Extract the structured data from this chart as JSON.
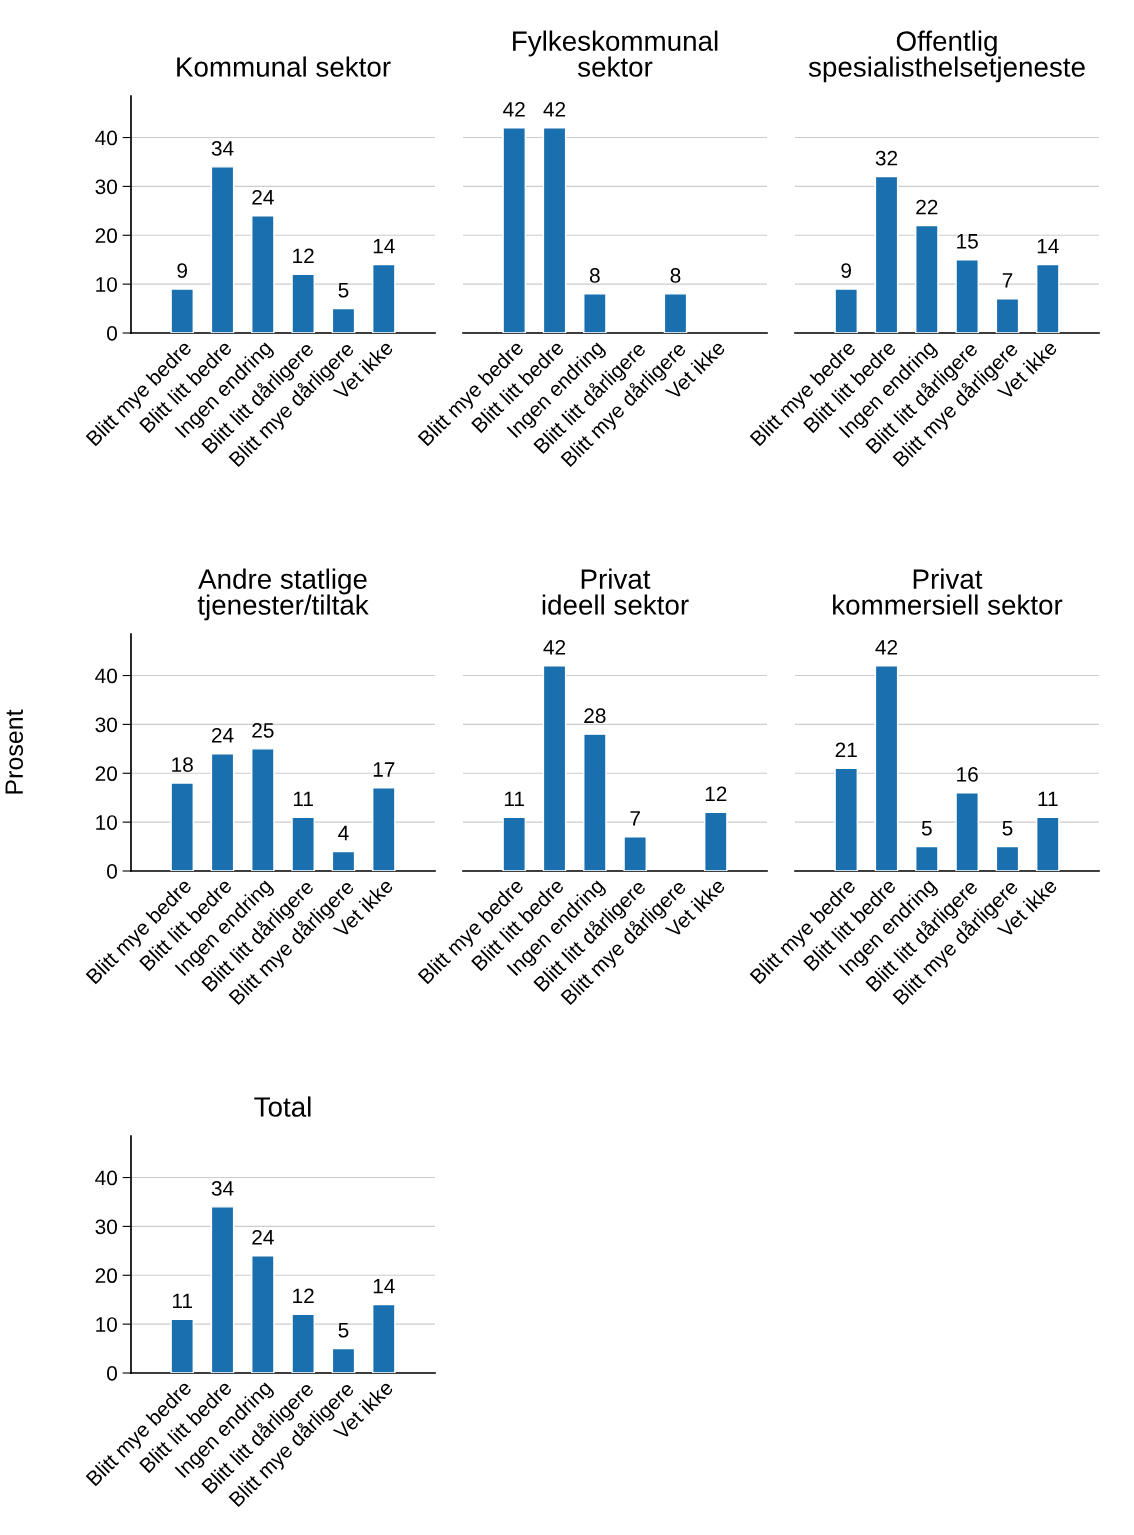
{
  "chart_data": [
    {
      "type": "bar",
      "title": "Kommunal sektor",
      "categories": [
        "Blitt mye bedre",
        "Blitt litt bedre",
        "Ingen endring",
        "Blitt litt dårligere",
        "Blitt mye dårligere",
        "Vet ikke"
      ],
      "values": [
        9,
        34,
        24,
        12,
        5,
        14
      ],
      "color": "#1a6faf",
      "ylim": [
        0,
        48.5
      ],
      "yticks": [
        0,
        10,
        20,
        30,
        40
      ],
      "grid": "y",
      "data_labels": true
    },
    {
      "type": "bar",
      "title": "Fylkeskommunal\nsektor",
      "categories": [
        "Blitt mye bedre",
        "Blitt litt bedre",
        "Ingen endring",
        "Blitt litt dårligere",
        "Blitt mye dårligere",
        "Vet ikke"
      ],
      "values": [
        42,
        42,
        8,
        null,
        8,
        null
      ],
      "color": "#1a6faf",
      "grid": "y",
      "data_labels": true,
      "tick_labels": "x"
    },
    {
      "type": "bar",
      "title": "Offentlig\nspesialisthelsetjeneste",
      "categories": [
        "Blitt mye bedre",
        "Blitt litt bedre",
        "Ingen endring",
        "Blitt litt dårligere",
        "Blitt mye dårligere",
        "Vet ikke"
      ],
      "values": [
        9,
        32,
        22,
        15,
        7,
        14
      ],
      "color": "#1a6faf",
      "grid": "y",
      "data_labels": true,
      "tick_labels": "x"
    },
    {
      "type": "bar",
      "title": "Andre statlige\ntjenester/tiltak",
      "ylabel": "Prosent",
      "categories": [
        "Blitt mye bedre",
        "Blitt litt bedre",
        "Ingen endring",
        "Blitt litt dårligere",
        "Blitt mye dårligere",
        "Vet ikke"
      ],
      "values": [
        18,
        24,
        25,
        11,
        4,
        17
      ],
      "color": "#1a6faf",
      "ylim": [
        0,
        48.5
      ],
      "yticks": [
        0,
        10,
        20,
        30,
        40
      ],
      "grid": "y",
      "data_labels": true
    },
    {
      "type": "bar",
      "title": "Privat\nideell sektor",
      "categories": [
        "Blitt mye bedre",
        "Blitt litt bedre",
        "Ingen endring",
        "Blitt litt dårligere",
        "Blitt mye dårligere",
        "Vet ikke"
      ],
      "values": [
        11,
        42,
        28,
        7,
        null,
        12
      ],
      "color": "#1a6faf",
      "grid": "y",
      "data_labels": true,
      "tick_labels": "x"
    },
    {
      "type": "bar",
      "title": "Privat\nkommersiell sektor",
      "categories": [
        "Blitt mye bedre",
        "Blitt litt bedre",
        "Ingen endring",
        "Blitt litt dårligere",
        "Blitt mye dårligere",
        "Vet ikke"
      ],
      "values": [
        21,
        42,
        5,
        16,
        5,
        11
      ],
      "color": "#1a6faf",
      "grid": "y",
      "data_labels": true,
      "tick_labels": "x"
    },
    {
      "type": "bar",
      "title": "Total",
      "categories": [
        "Blitt mye bedre",
        "Blitt litt bedre",
        "Ingen endring",
        "Blitt litt dårligere",
        "Blitt mye dårligere",
        "Vet ikke"
      ],
      "values": [
        11,
        34,
        24,
        12,
        5,
        14
      ],
      "color": "#1a6faf",
      "ylim": [
        0,
        48.5
      ],
      "yticks": [
        0,
        10,
        20,
        30,
        40
      ],
      "grid": "y",
      "data_labels": true
    }
  ]
}
